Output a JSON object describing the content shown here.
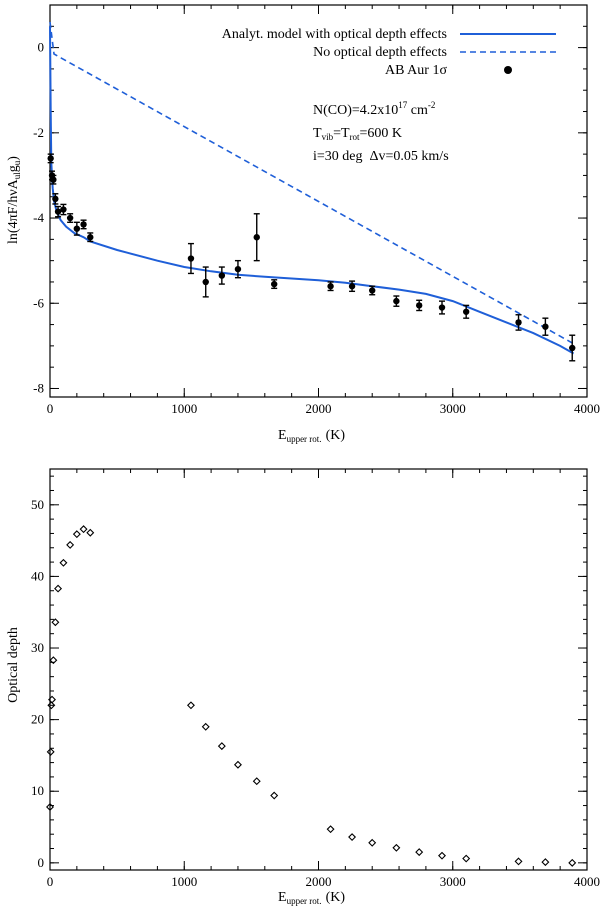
{
  "chart_data": [
    {
      "type": "line",
      "title": "",
      "xlabel": "E",
      "xlabel_sub": "upper rot.",
      "xlabel_unit": "(K)",
      "ylabel_parts": [
        "ln(4",
        "π",
        "F/h",
        "ν",
        "A",
        "ul",
        "g",
        "u",
        ")"
      ],
      "xlim": [
        0,
        4000
      ],
      "ylim": [
        -8.2,
        1.0
      ],
      "xticks": [
        0,
        1000,
        2000,
        3000,
        4000
      ],
      "yticks": [
        0,
        -2,
        -4,
        -6,
        -8
      ],
      "legend": {
        "position": "top-right",
        "entries": [
          {
            "label": "Analyt. model with optical depth effects",
            "style": "solid",
            "color": "#1f5fd8"
          },
          {
            "label": "No optical depth effects",
            "style": "dashed",
            "color": "#1f5fd8"
          },
          {
            "label": "AB Aur 1σ",
            "style": "marker",
            "color": "#000000"
          }
        ]
      },
      "annotations": {
        "line1": {
          "a": "N(CO)=4.2x10",
          "sup": "17",
          "b": " cm",
          "sup2": "-2"
        },
        "line2": {
          "a": "T",
          "sub1": "vib",
          "b": "=T",
          "sub2": "rot",
          "c": "=600 K"
        },
        "line3": {
          "a": "i=30 deg  ",
          "delta": "Δ",
          "b": "v=0.05 km/s"
        }
      },
      "series": [
        {
          "name": "Analyt. model with optical depth effects",
          "style": "solid",
          "color": "#1f5fd8",
          "x": [
            0,
            5,
            10,
            20,
            30,
            50,
            80,
            120,
            180,
            250,
            300,
            500,
            800,
            1000,
            1200,
            1400,
            1600,
            1800,
            2000,
            2200,
            2400,
            2600,
            2800,
            3000,
            3200,
            3400,
            3600,
            3800,
            3900
          ],
          "y": [
            0.5,
            -1.5,
            -2.7,
            -3.3,
            -3.6,
            -3.85,
            -4.05,
            -4.2,
            -4.35,
            -4.45,
            -4.55,
            -4.75,
            -5.0,
            -5.15,
            -5.25,
            -5.33,
            -5.38,
            -5.42,
            -5.46,
            -5.52,
            -5.6,
            -5.68,
            -5.78,
            -5.95,
            -6.2,
            -6.45,
            -6.7,
            -7.0,
            -7.18
          ]
        },
        {
          "name": "No optical depth effects",
          "style": "dashed",
          "color": "#1f5fd8",
          "x": [
            0,
            30,
            3900
          ],
          "y": [
            0.6,
            -0.15,
            -6.95
          ]
        }
      ],
      "points": {
        "name": "AB Aur 1σ",
        "x": [
          5,
          15,
          25,
          40,
          60,
          100,
          150,
          200,
          250,
          300,
          1050,
          1160,
          1280,
          1400,
          1540,
          1670,
          2090,
          2250,
          2400,
          2580,
          2750,
          2920,
          3100,
          3490,
          3690,
          3890
        ],
        "y": [
          -2.6,
          -3.0,
          -3.1,
          -3.55,
          -3.85,
          -3.8,
          -4.0,
          -4.25,
          -4.15,
          -4.45,
          -4.95,
          -5.5,
          -5.35,
          -5.2,
          -4.45,
          -5.55,
          -5.6,
          -5.6,
          -5.7,
          -5.95,
          -6.05,
          -6.1,
          -6.2,
          -6.45,
          -6.55,
          -7.05
        ],
        "err": [
          0.1,
          0.1,
          0.1,
          0.12,
          0.12,
          0.12,
          0.1,
          0.15,
          0.1,
          0.1,
          0.35,
          0.35,
          0.2,
          0.2,
          0.55,
          0.1,
          0.1,
          0.12,
          0.1,
          0.12,
          0.12,
          0.15,
          0.15,
          0.18,
          0.2,
          0.3
        ]
      }
    },
    {
      "type": "scatter",
      "title": "",
      "xlabel": "E",
      "xlabel_sub": "upper rot.",
      "xlabel_unit": "(K)",
      "ylabel": "Optical depth",
      "xlim": [
        0,
        4000
      ],
      "ylim": [
        -1,
        55
      ],
      "xticks": [
        0,
        1000,
        2000,
        3000,
        4000
      ],
      "yticks": [
        0,
        10,
        20,
        30,
        40,
        50
      ],
      "series": [
        {
          "name": "optical depth",
          "marker": "diamond",
          "x": [
            0,
            5,
            10,
            15,
            25,
            40,
            60,
            100,
            150,
            200,
            250,
            300,
            1050,
            1160,
            1280,
            1400,
            1540,
            1670,
            2090,
            2250,
            2400,
            2580,
            2750,
            2920,
            3100,
            3490,
            3690,
            3890
          ],
          "y": [
            7.8,
            15.5,
            22.0,
            22.8,
            28.3,
            33.6,
            38.3,
            41.9,
            44.4,
            45.9,
            46.6,
            46.1,
            22.0,
            19.0,
            16.3,
            13.7,
            11.4,
            9.4,
            4.7,
            3.6,
            2.8,
            2.1,
            1.5,
            1.0,
            0.6,
            0.2,
            0.1,
            0.0
          ]
        }
      ]
    }
  ]
}
